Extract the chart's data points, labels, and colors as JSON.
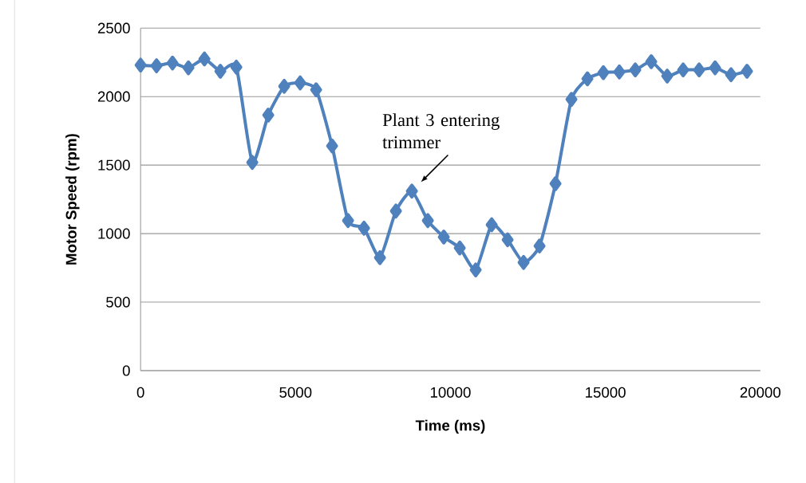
{
  "chart_data": {
    "type": "line",
    "xlabel": "Time (ms)",
    "ylabel": "Motor Speed (rpm)",
    "x": [
      0,
      515,
      1030,
      1545,
      2060,
      2575,
      3090,
      3605,
      4120,
      4635,
      5150,
      5665,
      6180,
      6695,
      7210,
      7725,
      8240,
      8755,
      9270,
      9785,
      10300,
      10815,
      11330,
      11845,
      12360,
      12875,
      13390,
      13905,
      14420,
      14935,
      15450,
      15965,
      16480,
      16995,
      17510,
      18025,
      18540,
      19055,
      19570
    ],
    "series": [
      {
        "color": "#4f81bd",
        "values": [
          2230,
          2225,
          2245,
          2210,
          2275,
          2185,
          2215,
          1520,
          1865,
          2075,
          2100,
          2050,
          1640,
          1095,
          1040,
          825,
          1165,
          1310,
          1095,
          975,
          895,
          735,
          1065,
          955,
          790,
          910,
          1365,
          1980,
          2130,
          2175,
          2180,
          2195,
          2255,
          2150,
          2195,
          2195,
          2210,
          2160,
          2185
        ]
      }
    ],
    "xlim": [
      0,
      20000
    ],
    "xticks": [
      0,
      5000,
      10000,
      15000,
      20000
    ],
    "ylim": [
      0,
      2500
    ],
    "yticks": [
      0,
      500,
      1000,
      1500,
      2000,
      2500
    ],
    "grid": "y",
    "marker": "diamond",
    "line_style": "solid",
    "annotations": [
      {
        "text": "Plant 3 entering trimmer",
        "x": 8755,
        "y": 1310
      }
    ]
  }
}
